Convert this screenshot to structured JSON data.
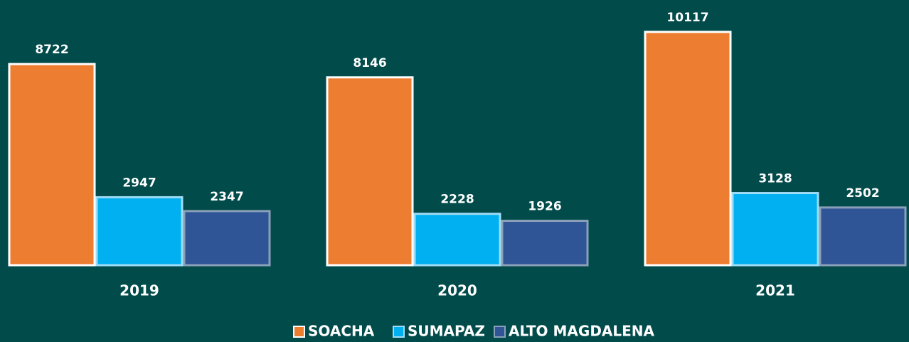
{
  "chart_data": {
    "type": "bar",
    "categories": [
      "2019",
      "2020",
      "2021"
    ],
    "series": [
      {
        "name": "SOACHA",
        "color": "#ed7d31",
        "values": [
          8722,
          8146,
          10117
        ]
      },
      {
        "name": "SUMAPAZ",
        "color": "#00b0f0",
        "values": [
          2947,
          2228,
          3128
        ]
      },
      {
        "name": "ALTO MAGDALENA",
        "color": "#2f5597",
        "values": [
          2347,
          1926,
          2502
        ]
      }
    ],
    "ylim": [
      0,
      11500
    ],
    "legend": "bottom"
  }
}
